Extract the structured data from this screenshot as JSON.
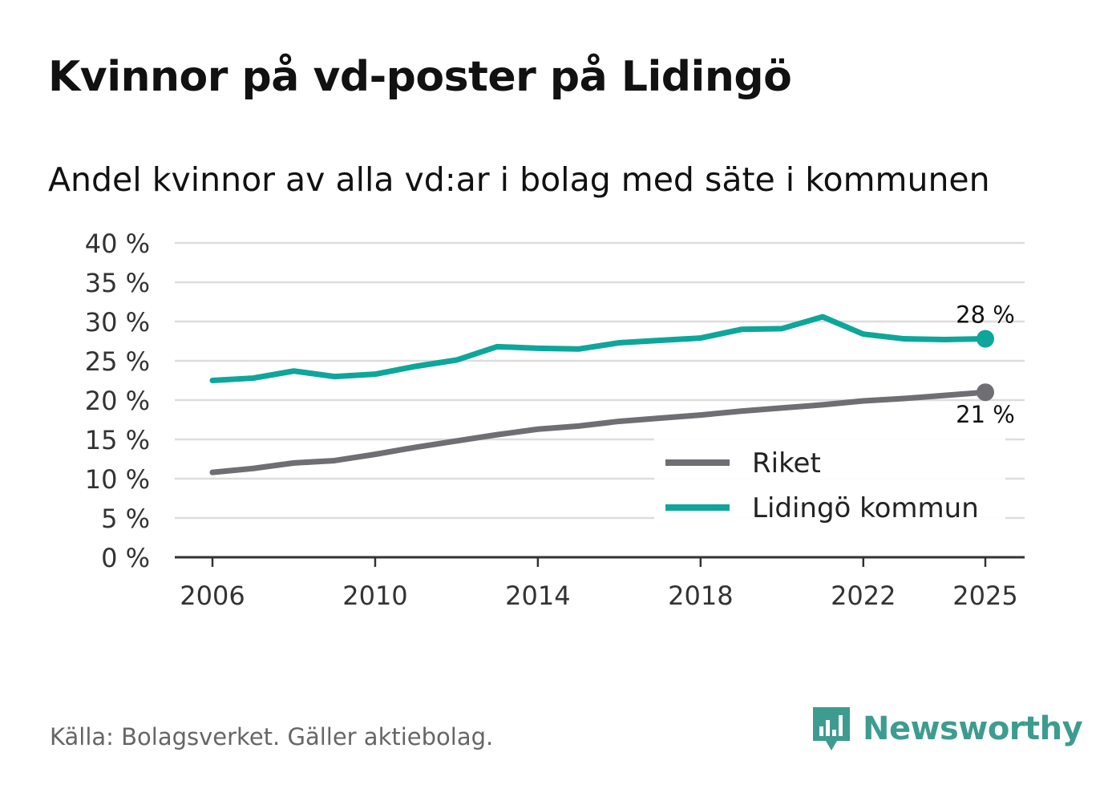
{
  "header": {
    "title": "Kvinnor på vd-poster på Lidingö",
    "subtitle": "Andel kvinnor av alla vd:ar i bolag med säte i kommunen"
  },
  "footer": {
    "source": "Källa: Bolagsverket. Gäller aktiebolag.",
    "brand": "Newsworthy"
  },
  "colors": {
    "lidingo": "#0ea69a",
    "riket": "#6f6e73",
    "grid": "#dddddd",
    "axis": "#333333",
    "brand": "#3d9c90"
  },
  "chart_data": {
    "type": "line",
    "title": "Kvinnor på vd-poster på Lidingö",
    "subtitle": "Andel kvinnor av alla vd:ar i bolag med säte i kommunen",
    "xlabel": "",
    "ylabel": "",
    "xlim": [
      2006,
      2025
    ],
    "ylim": [
      0,
      40
    ],
    "grid": true,
    "legend_position": "bottom-right",
    "x_ticks": [
      2006,
      2010,
      2014,
      2018,
      2022,
      2025
    ],
    "x_tick_labels": [
      "2006",
      "2010",
      "2014",
      "2018",
      "2022",
      "2025"
    ],
    "y_ticks": [
      0,
      5,
      10,
      15,
      20,
      25,
      30,
      35,
      40
    ],
    "y_tick_labels": [
      "0 %",
      "5 %",
      "10 %",
      "15 %",
      "20 %",
      "25 %",
      "30 %",
      "35 %",
      "40 %"
    ],
    "x": [
      2006,
      2007,
      2008,
      2009,
      2010,
      2011,
      2012,
      2013,
      2014,
      2015,
      2016,
      2017,
      2018,
      2019,
      2020,
      2021,
      2022,
      2023,
      2024,
      2025
    ],
    "series": [
      {
        "name": "Riket",
        "color": "#6f6e73",
        "values": [
          10.8,
          11.3,
          12.0,
          12.3,
          13.1,
          14.0,
          14.8,
          15.6,
          16.3,
          16.7,
          17.3,
          17.7,
          18.1,
          18.6,
          19.0,
          19.4,
          19.9,
          20.2,
          20.6,
          21.0
        ],
        "end_label": "21 %"
      },
      {
        "name": "Lidingö kommun",
        "color": "#0ea69a",
        "values": [
          22.5,
          22.8,
          23.7,
          23.0,
          23.3,
          24.3,
          25.1,
          26.8,
          26.6,
          26.5,
          27.3,
          27.6,
          27.9,
          29.0,
          29.1,
          30.6,
          28.4,
          27.8,
          27.7,
          27.8
        ],
        "end_label": "28 %"
      }
    ],
    "legend": [
      "Riket",
      "Lidingö kommun"
    ]
  }
}
